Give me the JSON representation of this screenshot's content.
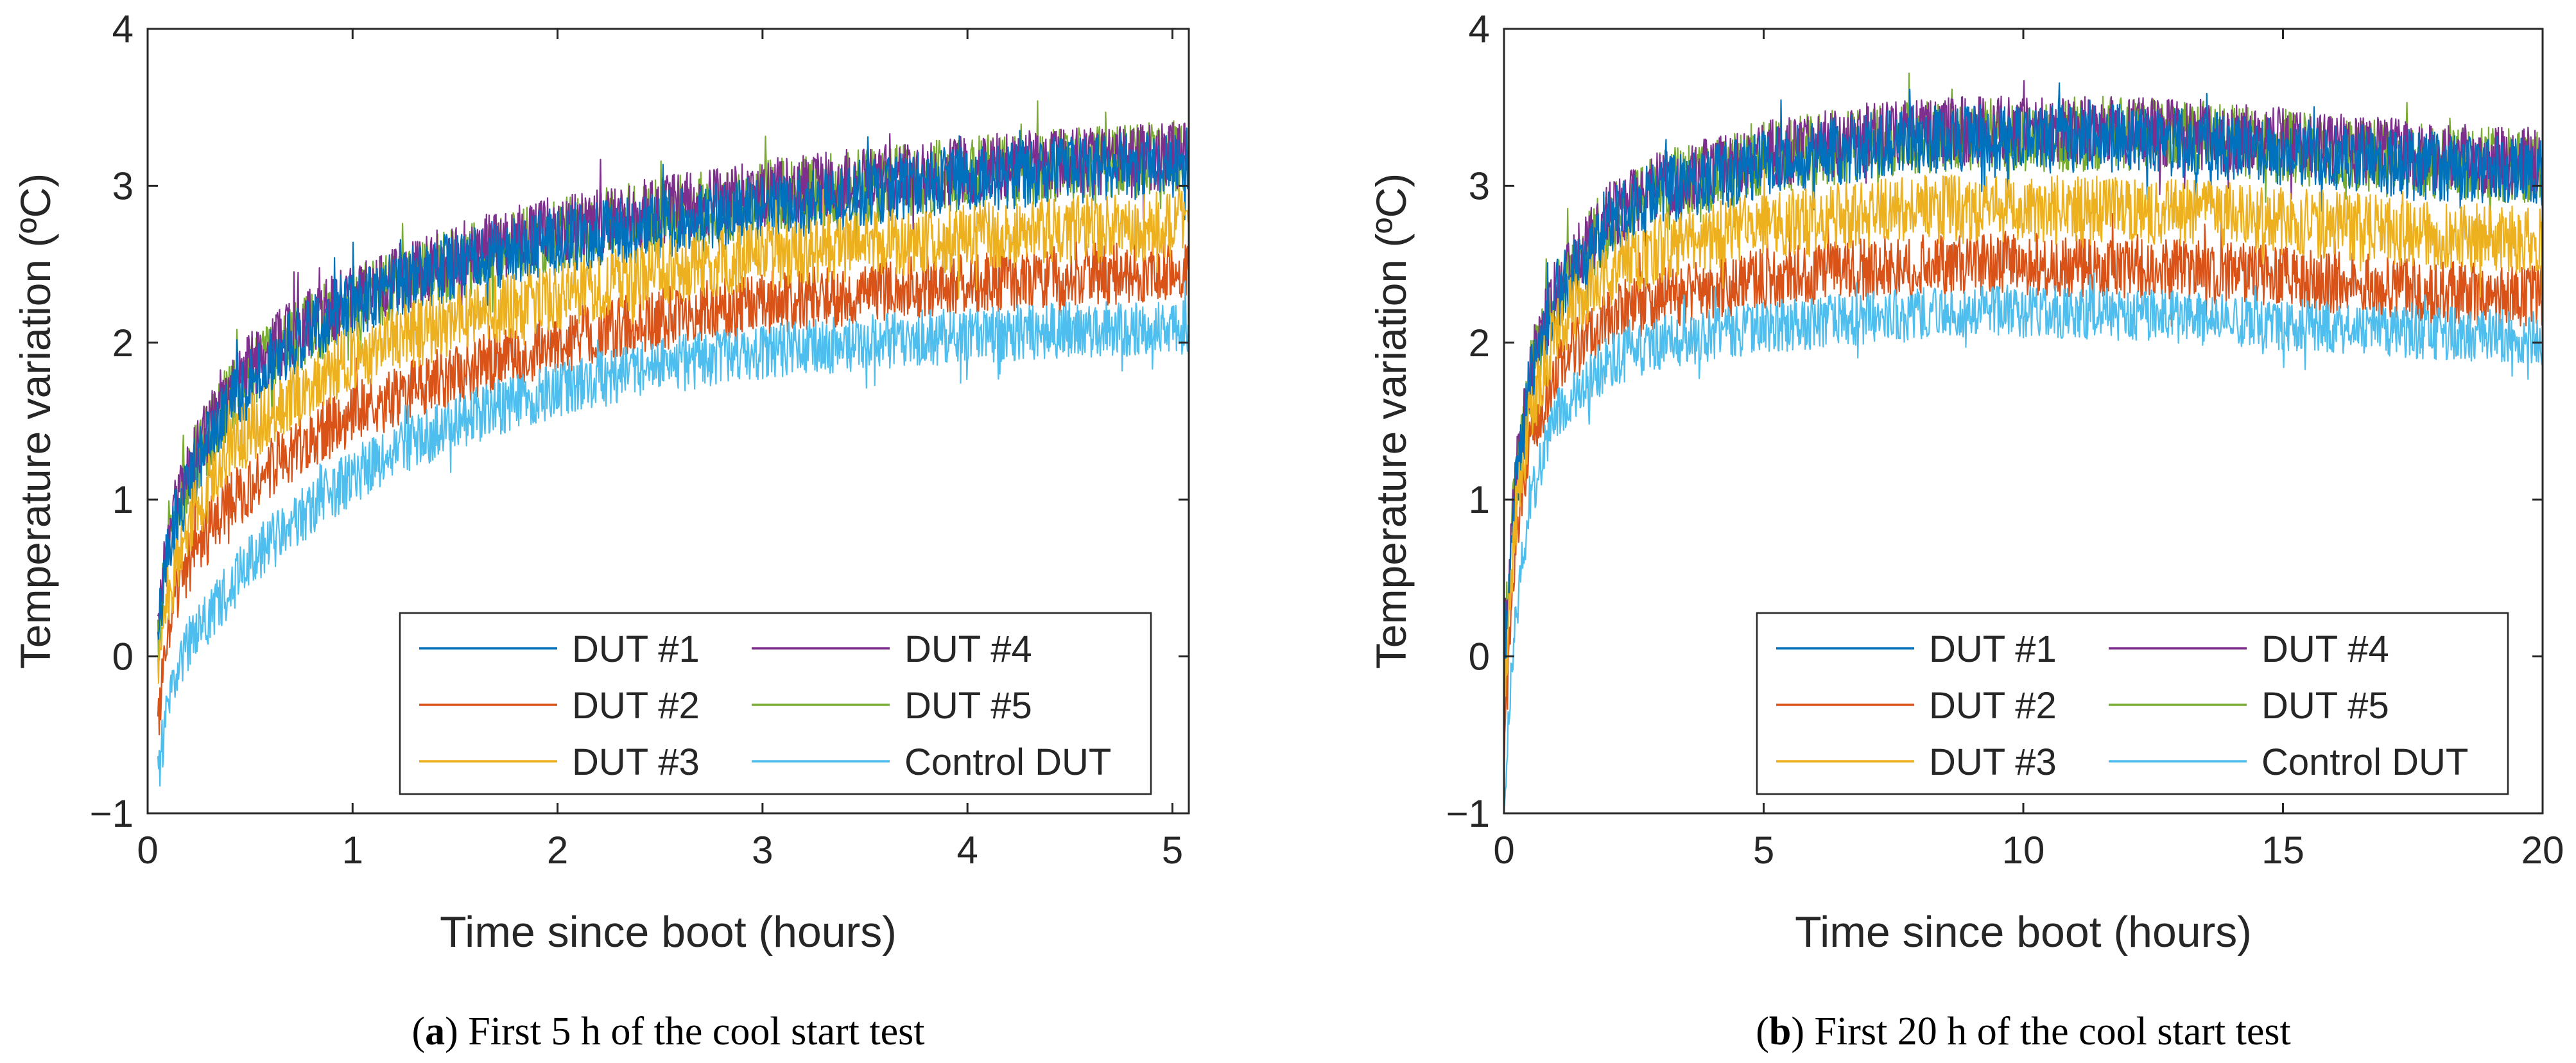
{
  "chart_data": [
    {
      "type": "line",
      "xlabel": "Time since boot (hours)",
      "ylabel": "Temperature variation (ºC)",
      "xlim": [
        0,
        5.08
      ],
      "ylim": [
        -1,
        4
      ],
      "xticks": [
        0,
        1,
        2,
        3,
        4,
        5
      ],
      "yticks": [
        -1,
        0,
        1,
        2,
        3,
        4
      ],
      "x_tick_labels": [
        "0",
        "1",
        "2",
        "3",
        "4",
        "5"
      ],
      "y_tick_labels": [
        "−1",
        "0",
        "1",
        "2",
        "3",
        "4"
      ],
      "grid": false,
      "legend_position": "bottom-right",
      "caption_label": "a",
      "caption_text": ") First 5 h of the cool start test",
      "series": [
        {
          "name": "DUT #1",
          "color": "#0072BD",
          "noise": 0.22,
          "x": [
            0.05,
            0.1,
            0.2,
            0.35,
            0.5,
            0.75,
            1.0,
            1.5,
            2.0,
            2.5,
            3.0,
            3.5,
            4.0,
            4.5,
            5.08
          ],
          "values": [
            0.1,
            0.7,
            1.1,
            1.5,
            1.75,
            2.05,
            2.25,
            2.5,
            2.65,
            2.75,
            2.85,
            2.95,
            3.05,
            3.1,
            3.15
          ]
        },
        {
          "name": "DUT #2",
          "color": "#D95319",
          "noise": 0.2,
          "x": [
            0.05,
            0.1,
            0.2,
            0.35,
            0.5,
            0.75,
            1.0,
            1.5,
            2.0,
            2.5,
            3.0,
            3.5,
            4.0,
            4.5,
            5.08
          ],
          "values": [
            -0.45,
            0.2,
            0.6,
            0.9,
            1.1,
            1.35,
            1.55,
            1.8,
            2.0,
            2.15,
            2.25,
            2.32,
            2.38,
            2.43,
            2.45
          ]
        },
        {
          "name": "DUT #3",
          "color": "#EDB120",
          "noise": 0.22,
          "x": [
            0.05,
            0.1,
            0.2,
            0.35,
            0.5,
            0.75,
            1.0,
            1.5,
            2.0,
            2.5,
            3.0,
            3.5,
            4.0,
            4.5,
            5.08
          ],
          "values": [
            -0.1,
            0.4,
            0.85,
            1.2,
            1.45,
            1.7,
            1.9,
            2.15,
            2.3,
            2.45,
            2.55,
            2.62,
            2.68,
            2.72,
            2.75
          ]
        },
        {
          "name": "DUT #4",
          "color": "#7E2F8E",
          "noise": 0.22,
          "x": [
            0.05,
            0.1,
            0.2,
            0.35,
            0.5,
            0.75,
            1.0,
            1.5,
            2.0,
            2.5,
            3.0,
            3.5,
            4.0,
            4.5,
            5.08
          ],
          "values": [
            0.15,
            0.8,
            1.2,
            1.6,
            1.85,
            2.1,
            2.3,
            2.55,
            2.72,
            2.85,
            2.95,
            3.03,
            3.1,
            3.15,
            3.2
          ]
        },
        {
          "name": "DUT #5",
          "color": "#77AC30",
          "noise": 0.24,
          "x": [
            0.05,
            0.1,
            0.2,
            0.35,
            0.5,
            0.75,
            1.0,
            1.5,
            2.0,
            2.5,
            3.0,
            3.5,
            4.0,
            4.5,
            5.08
          ],
          "values": [
            0.1,
            0.75,
            1.15,
            1.55,
            1.8,
            2.05,
            2.25,
            2.5,
            2.68,
            2.82,
            2.92,
            3.0,
            3.08,
            3.13,
            3.18
          ]
        },
        {
          "name": "Control DUT",
          "color": "#4DBEEE",
          "noise": 0.18,
          "x": [
            0.05,
            0.1,
            0.2,
            0.35,
            0.5,
            0.75,
            1.0,
            1.5,
            2.0,
            2.5,
            3.0,
            3.5,
            4.0,
            4.5,
            5.08
          ],
          "values": [
            -0.75,
            -0.3,
            0.1,
            0.35,
            0.6,
            0.9,
            1.15,
            1.5,
            1.7,
            1.85,
            1.95,
            2.0,
            2.05,
            2.08,
            2.1
          ]
        }
      ]
    },
    {
      "type": "line",
      "xlabel": "Time since boot (hours)",
      "ylabel": "Temperature variation (ºC)",
      "xlim": [
        0,
        20
      ],
      "ylim": [
        -1,
        4
      ],
      "xticks": [
        0,
        5,
        10,
        15,
        20
      ],
      "yticks": [
        -1,
        0,
        1,
        2,
        3,
        4
      ],
      "x_tick_labels": [
        "0",
        "5",
        "10",
        "15",
        "20"
      ],
      "y_tick_labels": [
        "−1",
        "0",
        "1",
        "2",
        "3",
        "4"
      ],
      "grid": false,
      "legend_position": "bottom-right",
      "caption_label": "b",
      "caption_text": ") First 20 h of the cool start test",
      "series": [
        {
          "name": "DUT #1",
          "color": "#0072BD",
          "noise": 0.22,
          "x": [
            0.0,
            0.2,
            0.5,
            1.0,
            2.0,
            3.0,
            5.0,
            8.0,
            10.0,
            12.0,
            15.0,
            18.0,
            20.0
          ],
          "values": [
            0.0,
            1.0,
            1.75,
            2.3,
            2.75,
            2.95,
            3.15,
            3.3,
            3.3,
            3.3,
            3.22,
            3.12,
            3.08
          ]
        },
        {
          "name": "DUT #2",
          "color": "#D95319",
          "noise": 0.2,
          "x": [
            0.0,
            0.2,
            0.5,
            1.0,
            2.0,
            3.0,
            5.0,
            8.0,
            10.0,
            12.0,
            15.0,
            18.0,
            20.0
          ],
          "values": [
            -0.6,
            0.6,
            1.35,
            1.85,
            2.15,
            2.28,
            2.4,
            2.5,
            2.5,
            2.48,
            2.42,
            2.32,
            2.3
          ]
        },
        {
          "name": "DUT #3",
          "color": "#EDB120",
          "noise": 0.22,
          "x": [
            0.0,
            0.2,
            0.5,
            1.0,
            2.0,
            3.0,
            5.0,
            8.0,
            10.0,
            12.0,
            15.0,
            18.0,
            20.0
          ],
          "values": [
            -0.3,
            0.8,
            1.55,
            2.1,
            2.45,
            2.6,
            2.75,
            2.85,
            2.85,
            2.84,
            2.78,
            2.68,
            2.65
          ]
        },
        {
          "name": "DUT #4",
          "color": "#7E2F8E",
          "noise": 0.22,
          "x": [
            0.0,
            0.2,
            0.5,
            1.0,
            2.0,
            3.0,
            5.0,
            8.0,
            10.0,
            12.0,
            15.0,
            18.0,
            20.0
          ],
          "values": [
            0.05,
            1.05,
            1.8,
            2.35,
            2.8,
            3.0,
            3.2,
            3.35,
            3.35,
            3.35,
            3.28,
            3.18,
            3.15
          ]
        },
        {
          "name": "DUT #5",
          "color": "#77AC30",
          "noise": 0.24,
          "x": [
            0.0,
            0.2,
            0.5,
            1.0,
            2.0,
            3.0,
            5.0,
            8.0,
            10.0,
            12.0,
            15.0,
            18.0,
            20.0
          ],
          "values": [
            0.0,
            1.0,
            1.78,
            2.32,
            2.78,
            2.98,
            3.18,
            3.32,
            3.33,
            3.33,
            3.25,
            3.15,
            3.12
          ]
        },
        {
          "name": "Control DUT",
          "color": "#4DBEEE",
          "noise": 0.17,
          "x": [
            0.0,
            0.2,
            0.5,
            1.0,
            2.0,
            3.0,
            5.0,
            8.0,
            10.0,
            12.0,
            15.0,
            18.0,
            20.0
          ],
          "values": [
            -0.9,
            0.2,
            1.0,
            1.55,
            1.88,
            2.0,
            2.1,
            2.18,
            2.2,
            2.18,
            2.12,
            2.06,
            2.03
          ]
        }
      ]
    }
  ]
}
